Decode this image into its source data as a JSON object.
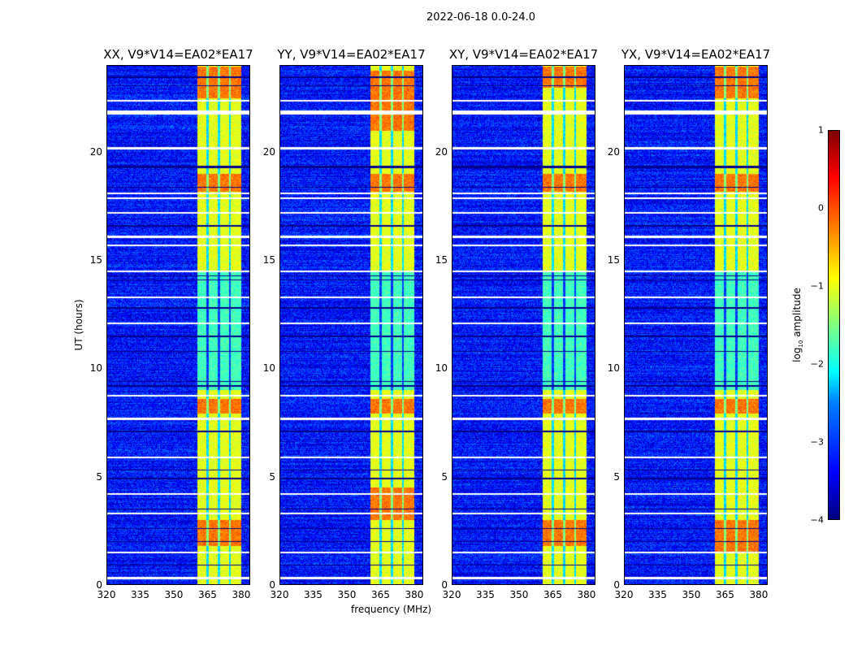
{
  "title": "2022-06-18 0.0-24.0",
  "chart_data": {
    "type": "heatmap",
    "title": "2022-06-18 0.0-24.0",
    "xlabel": "frequency (MHz)",
    "ylabel": "UT (hours)",
    "xlim": [
      320,
      384
    ],
    "ylim": [
      0,
      24
    ],
    "xticks": [
      320,
      335,
      350,
      365,
      380
    ],
    "yticks": [
      0,
      5,
      10,
      15,
      20
    ],
    "panels": [
      {
        "title": "XX, V9*V14=EA02*EA17",
        "hot_hours": [
          [
            1.8,
            3.0
          ],
          [
            7.9,
            8.6
          ],
          [
            18.2,
            19.0
          ],
          [
            22.5,
            24
          ]
        ]
      },
      {
        "title": "YY, V9*V14=EA02*EA17",
        "hot_hours": [
          [
            3.0,
            4.5
          ],
          [
            7.9,
            8.6
          ],
          [
            18.2,
            19.0
          ],
          [
            21.0,
            23.8
          ]
        ]
      },
      {
        "title": "XY, V9*V14=EA02*EA17",
        "hot_hours": [
          [
            1.8,
            3.0
          ],
          [
            7.9,
            8.6
          ],
          [
            18.2,
            19.0
          ],
          [
            23.0,
            24
          ]
        ]
      },
      {
        "title": "YX, V9*V14=EA02*EA17",
        "hot_hours": [
          [
            1.5,
            3.0
          ],
          [
            7.9,
            8.6
          ],
          [
            18.2,
            19.0
          ],
          [
            22.5,
            24
          ]
        ]
      }
    ],
    "rfi_band_mhz": [
      360.5,
      380
    ],
    "band_gaps_mhz": [
      365,
      370,
      375
    ],
    "background_log_amp": -3.3,
    "band_log_amp": -1.0,
    "hot_log_amp": -0.2,
    "weak_band_hours": [
      [
        9,
        14.5
      ]
    ],
    "flagged_white_hours": [
      0.3,
      1.5,
      3.3,
      4.2,
      5.9,
      7.65,
      7.7,
      8.75,
      12.1,
      13.3,
      14.5,
      15.7,
      16.1,
      17.2,
      17.9,
      18.1,
      20.2,
      21.8,
      21.85,
      21.9,
      22.4
    ],
    "dark_rows_hours": [
      0.9,
      2.0,
      2.6,
      3.5,
      4.9,
      5.3,
      7.1,
      9.2,
      9.4,
      10.8,
      11.5,
      12.8,
      14.1,
      14.3,
      16.6,
      18.4,
      19.3,
      19.35,
      23.1,
      23.5
    ],
    "colorbar": {
      "label": "log10 amplitude",
      "range": [
        -4,
        1
      ],
      "ticks": [
        "−4",
        "−3",
        "−2",
        "−1",
        "0",
        "1"
      ],
      "colormap": "jet"
    }
  }
}
